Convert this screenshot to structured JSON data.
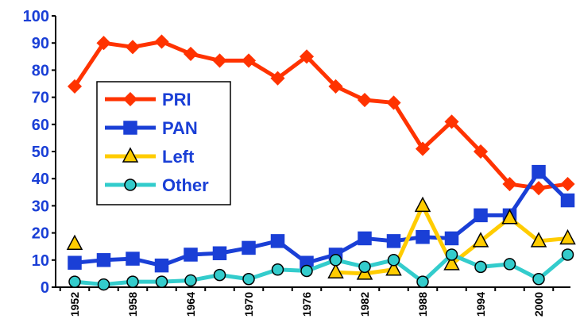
{
  "chart_data": {
    "type": "line",
    "categories": [
      "1952",
      null,
      "1958",
      null,
      "1964",
      null,
      "1970",
      null,
      "1976",
      null,
      "1982",
      null,
      "1988",
      null,
      "1994",
      null,
      "2000",
      null
    ],
    "series": [
      {
        "name": "PRI",
        "color": "#ff3300",
        "marker": "diamond",
        "values": [
          74,
          90,
          88.5,
          90.5,
          86,
          83.5,
          83.5,
          77,
          85,
          74,
          69,
          68,
          51,
          61,
          50,
          38,
          36.5,
          38
        ]
      },
      {
        "name": "PAN",
        "color": "#1a3fd6",
        "marker": "square",
        "values": [
          9,
          10,
          10.5,
          8,
          12,
          12.5,
          14.5,
          17,
          9,
          12,
          18,
          17,
          18.5,
          18,
          26.5,
          26.5,
          42.5,
          32
        ]
      },
      {
        "name": "Left",
        "color": "#ffcc00",
        "marker": "triangle",
        "values": [
          16,
          null,
          null,
          null,
          null,
          null,
          null,
          null,
          null,
          5.5,
          5,
          6.5,
          30,
          8.5,
          17,
          25.5,
          17,
          18
        ]
      },
      {
        "name": "Other",
        "color": "#33cccc",
        "marker": "circle",
        "values": [
          2,
          1,
          2,
          2,
          2.5,
          4.5,
          3,
          6.5,
          6,
          10,
          7.5,
          10,
          2,
          12,
          7.5,
          8.5,
          3,
          12
        ]
      }
    ],
    "ylim": [
      0,
      100
    ],
    "yticks": [
      0,
      10,
      20,
      30,
      40,
      50,
      60,
      70,
      80,
      90,
      100
    ],
    "legend": "upper left"
  }
}
